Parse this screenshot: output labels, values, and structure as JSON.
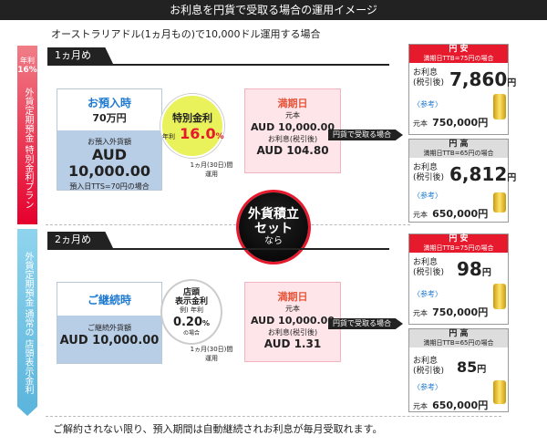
{
  "header": {
    "title": "お利息を円貨で受取る場合の運用イメージ"
  },
  "subtitle": "オーストラリアドル(1ヵ月もの)で10,000ドル運用する場合",
  "sidebar": {
    "rate_label": "年利",
    "rate_value": "16%",
    "plan1": "外貨定期預金 特別金利プラン",
    "plan2": "外貨定期預金 通常の 店頭表示金利"
  },
  "month1": {
    "tab": "1ヵ月め",
    "deposit": {
      "title": "お預入時",
      "amount": "70万円",
      "panel_label": "お預入外貨額",
      "aud": "AUD 10,000.00",
      "rate_note": "預入日TTS=70円の場合"
    },
    "rate_circle": {
      "title": "特別金利",
      "prefix": "年利",
      "value": "16.0",
      "unit": "%"
    },
    "period": "1ヵ月(30日)間\n運用",
    "maturity": {
      "title": "満期日",
      "principal_label": "元本",
      "principal": "AUD 10,000.00",
      "interest_label": "お利息(税引後)",
      "interest": "AUD 104.80"
    },
    "arrow": "円貨で受取る場合",
    "weak": {
      "title": "円 安",
      "sub": "満期日TTB=75円の場合",
      "int_label1": "お利息",
      "int_label2": "(税引後)",
      "value": "7,860",
      "unit": "円",
      "ref_label": "〈参考〉",
      "ref_prefix": "元本",
      "ref_value": "750,000円"
    },
    "strong": {
      "title": "円 高",
      "sub": "満期日TTB=65円の場合",
      "int_label1": "お利息",
      "int_label2": "(税引後)",
      "value": "6,812",
      "unit": "円",
      "ref_label": "〈参考〉",
      "ref_prefix": "元本",
      "ref_value": "650,000円"
    }
  },
  "center": {
    "line1": "外貨積立",
    "line2": "セット",
    "line3": "なら"
  },
  "month2": {
    "tab": "2ヵ月め",
    "deposit": {
      "title": "ご継続時",
      "panel_label": "ご継続外貨額",
      "aud": "AUD 10,000.00"
    },
    "rate_circle": {
      "line1": "店頭",
      "line2": "表示金利",
      "prefix": "例) 年利",
      "value": "0.20",
      "unit": "%",
      "note": "の場合"
    },
    "period": "1ヵ月(30日)間\n運用",
    "maturity": {
      "title": "満期日",
      "principal_label": "元本",
      "principal": "AUD 10,000.00",
      "interest_label": "お利息(税引後)",
      "interest": "AUD 1.31"
    },
    "arrow": "円貨で受取る場合",
    "weak": {
      "title": "円 安",
      "sub": "満期日TTB=75円の場合",
      "int_label1": "お利息",
      "int_label2": "(税引後)",
      "value": "98",
      "unit": "円",
      "ref_label": "〈参考〉",
      "ref_prefix": "元本",
      "ref_value": "750,000円"
    },
    "strong": {
      "title": "円 高",
      "sub": "満期日TTB=65円の場合",
      "int_label1": "お利息",
      "int_label2": "(税引後)",
      "value": "85",
      "unit": "円",
      "ref_label": "〈参考〉",
      "ref_prefix": "元本",
      "ref_value": "650,000円"
    }
  },
  "footer": "ご解約されない限り、預入期間は自動継続されお利息が毎月受取れます。",
  "colors": {
    "accent_red": "#e6192d",
    "accent_blue": "#1d7ad0",
    "panel_blue": "#b8cde6"
  }
}
